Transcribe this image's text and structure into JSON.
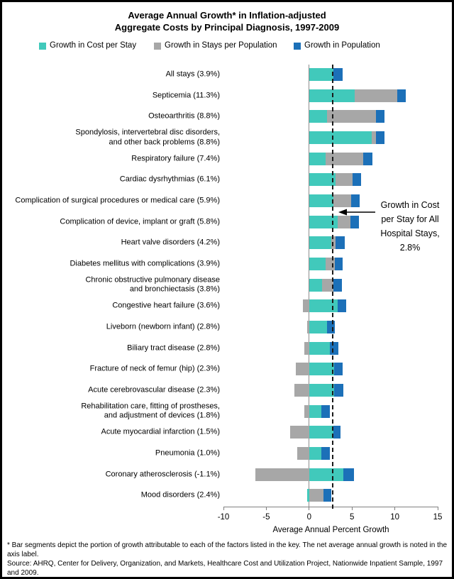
{
  "title": {
    "line1": "Average Annual Growth* in Inflation-adjusted",
    "line2": "Aggregate Costs by Principal Diagnosis, 1997-2009"
  },
  "legend": {
    "position": "top",
    "items": [
      {
        "label": "Growth in Cost per Stay",
        "color": "#41C9BB"
      },
      {
        "label": "Growth in Stays per Population",
        "color": "#A7A7A7"
      },
      {
        "label": "Growth in Population",
        "color": "#1C70B8"
      }
    ]
  },
  "annotation": {
    "text": "Growth in Cost\nper Stay for All\nHospital Stays,\n2.8%",
    "points_to_value": 2.8
  },
  "chart_data": {
    "type": "bar",
    "orientation": "horizontal",
    "stacked": true,
    "grid": false,
    "xlabel": "Average Annual Percent Growth",
    "xlim": [
      -10,
      15
    ],
    "x_tick_values": [
      -10,
      -5,
      0,
      5,
      10,
      15
    ],
    "reference_line_value": 2.8,
    "series_names": [
      "Growth in Cost per Stay",
      "Growth in Stays per Population",
      "Growth in Population"
    ],
    "rows": [
      {
        "label": "All stays (3.9%)",
        "net": 3.9,
        "values": {
          "cost_per_stay": 2.8,
          "stays_per_population": 0.0,
          "population": 1.1
        }
      },
      {
        "label": "Septicemia (11.3%)",
        "net": 11.3,
        "values": {
          "cost_per_stay": 5.3,
          "stays_per_population": 5.0,
          "population": 1.0
        }
      },
      {
        "label": "Osteoarthritis (8.8%)",
        "net": 8.8,
        "values": {
          "cost_per_stay": 2.1,
          "stays_per_population": 5.7,
          "population": 1.0
        }
      },
      {
        "label": "Spondylosis, intervertebral disc disorders,\nand other back problems (8.8%)",
        "net": 8.8,
        "values": {
          "cost_per_stay": 7.3,
          "stays_per_population": 0.5,
          "population": 1.0
        }
      },
      {
        "label": "Respiratory failure (7.4%)",
        "net": 7.4,
        "values": {
          "cost_per_stay": 1.9,
          "stays_per_population": 4.4,
          "population": 1.1
        }
      },
      {
        "label": "Cardiac dysrhythmias (6.1%)",
        "net": 6.1,
        "values": {
          "cost_per_stay": 3.1,
          "stays_per_population": 2.0,
          "population": 1.0
        }
      },
      {
        "label": "Complication of surgical procedures or medical care (5.9%)",
        "net": 5.9,
        "values": {
          "cost_per_stay": 2.8,
          "stays_per_population": 2.1,
          "population": 1.0
        }
      },
      {
        "label": "Complication of device, implant or graft (5.8%)",
        "net": 5.8,
        "values": {
          "cost_per_stay": 3.3,
          "stays_per_population": 1.5,
          "population": 1.0
        }
      },
      {
        "label": "Heart valve disorders (4.2%)",
        "net": 4.2,
        "values": {
          "cost_per_stay": 2.6,
          "stays_per_population": 0.5,
          "population": 1.1
        }
      },
      {
        "label": "Diabetes mellitus with complications (3.9%)",
        "net": 3.9,
        "values": {
          "cost_per_stay": 1.9,
          "stays_per_population": 1.1,
          "population": 0.9
        }
      },
      {
        "label": "Chronic obstructive pulmonary disease\nand bronchiectasis (3.8%)",
        "net": 3.8,
        "values": {
          "cost_per_stay": 1.5,
          "stays_per_population": 1.3,
          "population": 1.0
        }
      },
      {
        "label": "Congestive heart failure (3.6%)",
        "net": 3.6,
        "values": {
          "cost_per_stay": 3.3,
          "stays_per_population": -0.7,
          "population": 1.0
        }
      },
      {
        "label": "Liveborn (newborn infant) (2.8%)",
        "net": 2.8,
        "values": {
          "cost_per_stay": 2.1,
          "stays_per_population": -0.2,
          "population": 0.9
        }
      },
      {
        "label": "Biliary tract disease (2.8%)",
        "net": 2.8,
        "values": {
          "cost_per_stay": 2.4,
          "stays_per_population": -0.6,
          "population": 1.0
        }
      },
      {
        "label": "Fracture of neck of femur (hip) (2.3%)",
        "net": 2.3,
        "values": {
          "cost_per_stay": 2.9,
          "stays_per_population": -1.6,
          "population": 1.0
        }
      },
      {
        "label": "Acute cerebrovascular disease (2.3%)",
        "net": 2.3,
        "values": {
          "cost_per_stay": 2.9,
          "stays_per_population": -1.7,
          "population": 1.1
        }
      },
      {
        "label": "Rehabilitation care, fitting of prostheses,\nand adjustment of devices (1.8%)",
        "net": 1.8,
        "values": {
          "cost_per_stay": 1.4,
          "stays_per_population": -0.6,
          "population": 1.0
        }
      },
      {
        "label": "Acute myocardial infarction (1.5%)",
        "net": 1.5,
        "values": {
          "cost_per_stay": 2.8,
          "stays_per_population": -2.2,
          "population": 0.9
        }
      },
      {
        "label": "Pneumonia (1.0%)",
        "net": 1.0,
        "values": {
          "cost_per_stay": 1.4,
          "stays_per_population": -1.4,
          "population": 1.0
        }
      },
      {
        "label": "Coronary atherosclerosis (-1.1%)",
        "net": -1.1,
        "values": {
          "cost_per_stay": 4.0,
          "stays_per_population": -6.3,
          "population": 1.2
        }
      },
      {
        "label": "Mood disorders (2.4%)",
        "net": 2.4,
        "values": {
          "cost_per_stay": -0.2,
          "stays_per_population": 1.7,
          "population": 0.9
        }
      }
    ]
  },
  "footnote": {
    "note": "* Bar segments depict the portion of growth attributable to each of the factors listed in the key. The net average annual growth is noted in the axis label.",
    "source": "Source: AHRQ, Center for Delivery, Organization, and Markets, Healthcare Cost and Utilization Project, Nationwide Inpatient Sample, 1997 and 2009."
  },
  "colors": {
    "cost_per_stay": "#41C9BB",
    "stays_per_population": "#A7A7A7",
    "population": "#1C70B8",
    "axis": "#808080",
    "reference_line": "#1A1A1A",
    "text": "#000000"
  }
}
